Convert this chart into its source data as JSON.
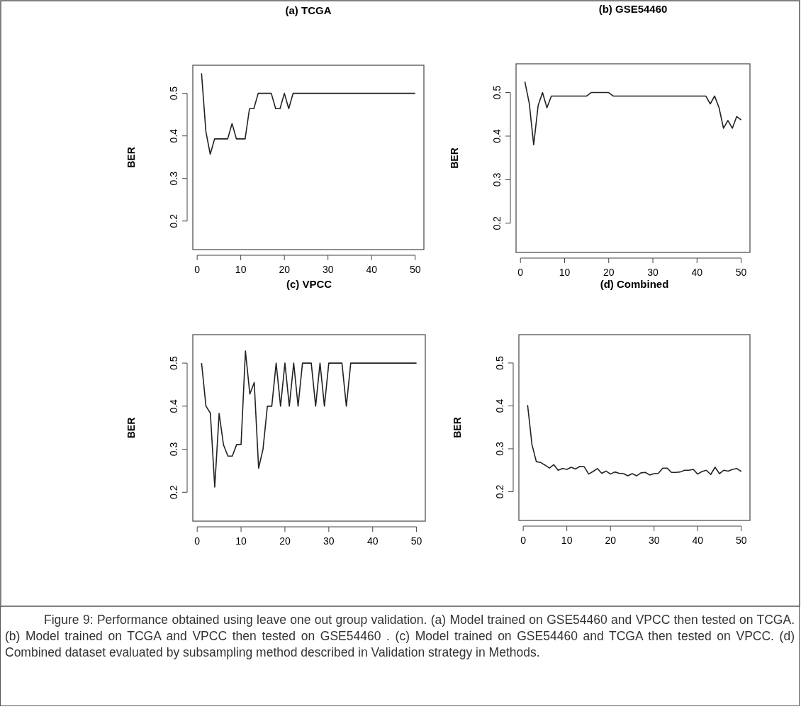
{
  "chart_data": [
    {
      "type": "line",
      "title": "(a) TCGA",
      "ylabel": "BER",
      "xlim": [
        -1,
        52
      ],
      "ylim": [
        0.133,
        0.566
      ],
      "xticks": [
        0,
        10,
        20,
        30,
        40,
        50
      ],
      "yticks": [
        0.2,
        0.3,
        0.4,
        0.5
      ],
      "x": [
        1,
        2,
        3,
        4,
        5,
        6,
        7,
        8,
        9,
        10,
        11,
        12,
        13,
        14,
        15,
        16,
        17,
        18,
        19,
        20,
        21,
        22,
        23,
        24,
        25,
        26,
        27,
        28,
        29,
        30,
        31,
        32,
        33,
        34,
        35,
        36,
        37,
        38,
        39,
        40,
        41,
        42,
        43,
        44,
        45,
        46,
        47,
        48,
        49,
        50
      ],
      "series": [
        {
          "color": "#222222",
          "values": [
            0.547,
            0.41,
            0.357,
            0.393,
            0.393,
            0.393,
            0.393,
            0.429,
            0.393,
            0.393,
            0.393,
            0.464,
            0.464,
            0.5,
            0.5,
            0.5,
            0.5,
            0.464,
            0.464,
            0.5,
            0.464,
            0.5,
            0.5,
            0.5,
            0.5,
            0.5,
            0.5,
            0.5,
            0.5,
            0.5,
            0.5,
            0.5,
            0.5,
            0.5,
            0.5,
            0.5,
            0.5,
            0.5,
            0.5,
            0.5,
            0.5,
            0.5,
            0.5,
            0.5,
            0.5,
            0.5,
            0.5,
            0.5,
            0.5,
            0.5
          ]
        }
      ]
    },
    {
      "type": "line",
      "title": "(b) GSE54460",
      "ylabel": "BER",
      "xlim": [
        -1,
        52
      ],
      "ylim": [
        0.133,
        0.566
      ],
      "xticks": [
        0,
        10,
        20,
        30,
        40,
        50
      ],
      "yticks": [
        0.2,
        0.3,
        0.4,
        0.5
      ],
      "x": [
        1,
        2,
        3,
        4,
        5,
        6,
        7,
        8,
        9,
        10,
        11,
        12,
        13,
        14,
        15,
        16,
        17,
        18,
        19,
        20,
        21,
        22,
        23,
        24,
        25,
        26,
        27,
        28,
        29,
        30,
        31,
        32,
        33,
        34,
        35,
        36,
        37,
        38,
        39,
        40,
        41,
        42,
        43,
        44,
        45,
        46,
        47,
        48,
        49,
        50
      ],
      "series": [
        {
          "color": "#222222",
          "values": [
            0.525,
            0.475,
            0.38,
            0.47,
            0.5,
            0.465,
            0.492,
            0.492,
            0.492,
            0.492,
            0.492,
            0.492,
            0.492,
            0.492,
            0.492,
            0.5,
            0.5,
            0.5,
            0.5,
            0.5,
            0.492,
            0.492,
            0.492,
            0.492,
            0.492,
            0.492,
            0.492,
            0.492,
            0.492,
            0.492,
            0.492,
            0.492,
            0.492,
            0.492,
            0.492,
            0.492,
            0.492,
            0.492,
            0.492,
            0.492,
            0.492,
            0.492,
            0.474,
            0.492,
            0.465,
            0.418,
            0.436,
            0.418,
            0.445,
            0.437
          ]
        }
      ]
    },
    {
      "type": "line",
      "title": "(c) VPCC",
      "ylabel": "BER",
      "xlim": [
        -1,
        52
      ],
      "ylim": [
        0.133,
        0.566
      ],
      "xticks": [
        0,
        10,
        20,
        30,
        40,
        50
      ],
      "yticks": [
        0.2,
        0.3,
        0.4,
        0.5
      ],
      "x": [
        1,
        2,
        3,
        4,
        5,
        6,
        7,
        8,
        9,
        10,
        11,
        12,
        13,
        14,
        15,
        16,
        17,
        18,
        19,
        20,
        21,
        22,
        23,
        24,
        25,
        26,
        27,
        28,
        29,
        30,
        31,
        32,
        33,
        34,
        35,
        36,
        37,
        38,
        39,
        40,
        41,
        42,
        43,
        44,
        45,
        46,
        47,
        48,
        49,
        50
      ],
      "series": [
        {
          "color": "#222222",
          "values": [
            0.5,
            0.4,
            0.384,
            0.212,
            0.383,
            0.31,
            0.284,
            0.284,
            0.311,
            0.311,
            0.528,
            0.428,
            0.455,
            0.256,
            0.3,
            0.4,
            0.4,
            0.5,
            0.4,
            0.5,
            0.4,
            0.5,
            0.4,
            0.5,
            0.5,
            0.5,
            0.4,
            0.5,
            0.4,
            0.5,
            0.5,
            0.5,
            0.5,
            0.4,
            0.5,
            0.5,
            0.5,
            0.5,
            0.5,
            0.5,
            0.5,
            0.5,
            0.5,
            0.5,
            0.5,
            0.5,
            0.5,
            0.5,
            0.5,
            0.5
          ]
        }
      ]
    },
    {
      "type": "line",
      "title": "(d) Combined",
      "ylabel": "BER",
      "xlim": [
        -1,
        52
      ],
      "ylim": [
        0.133,
        0.566
      ],
      "xticks": [
        0,
        10,
        20,
        30,
        40,
        50
      ],
      "yticks": [
        0.2,
        0.3,
        0.4,
        0.5
      ],
      "x": [
        1,
        2,
        3,
        4,
        5,
        6,
        7,
        8,
        9,
        10,
        11,
        12,
        13,
        14,
        15,
        16,
        17,
        18,
        19,
        20,
        21,
        22,
        23,
        24,
        25,
        26,
        27,
        28,
        29,
        30,
        31,
        32,
        33,
        34,
        35,
        36,
        37,
        38,
        39,
        40,
        41,
        42,
        43,
        44,
        45,
        46,
        47,
        48,
        49,
        50
      ],
      "series": [
        {
          "color": "#222222",
          "values": [
            0.402,
            0.31,
            0.27,
            0.268,
            0.262,
            0.255,
            0.263,
            0.25,
            0.254,
            0.252,
            0.257,
            0.253,
            0.259,
            0.258,
            0.241,
            0.247,
            0.254,
            0.243,
            0.248,
            0.241,
            0.246,
            0.243,
            0.242,
            0.237,
            0.242,
            0.237,
            0.244,
            0.245,
            0.239,
            0.242,
            0.243,
            0.255,
            0.255,
            0.245,
            0.245,
            0.246,
            0.25,
            0.25,
            0.252,
            0.241,
            0.247,
            0.25,
            0.24,
            0.257,
            0.242,
            0.25,
            0.248,
            0.252,
            0.254,
            0.247
          ]
        }
      ],
      "annotations": [
        "Figure 9: Performance obtained using leave one out group validation. (a) Model trained on GSE54460 and VPCC then tested on TCGA. (b) Model trained on TCGA and VPCC then tested on GSE54460 . (c) Model trained on GSE54460 and TCGA then tested on VPCC. (d) Combined dataset evaluated by subsampling method described in Validation strategy in Methods."
      ]
    }
  ]
}
